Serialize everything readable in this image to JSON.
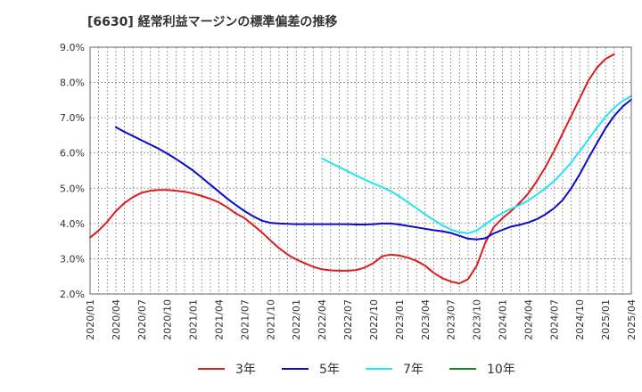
{
  "title": "[6630]  経常利益マージンの標準偏差の推移",
  "colors": {
    "s3": "#dd1c1c",
    "s5": "#0a0ac8",
    "s7": "#1fe6f0",
    "s10": "#118a11",
    "grid": "#888888"
  },
  "chart_data": {
    "type": "line",
    "title": "[6630]  経常利益マージンの標準偏差の推移",
    "xlabel": "",
    "ylabel": "",
    "ylim": [
      2.0,
      9.0
    ],
    "y_ticks": [
      "2.0%",
      "3.0%",
      "4.0%",
      "5.0%",
      "6.0%",
      "7.0%",
      "8.0%",
      "9.0%"
    ],
    "x_ticks": [
      "2020/01",
      "2020/04",
      "2020/07",
      "2020/10",
      "2021/01",
      "2021/04",
      "2021/07",
      "2021/10",
      "2022/01",
      "2022/04",
      "2022/07",
      "2022/10",
      "2023/01",
      "2023/04",
      "2023/07",
      "2023/10",
      "2024/01",
      "2024/04",
      "2024/07",
      "2024/10",
      "2025/01",
      "2025/04"
    ],
    "grid": true,
    "legend_position": "bottom",
    "series": [
      {
        "name": "3年",
        "color": "#dd1c1c",
        "start": "2020/01",
        "values": [
          3.6,
          3.8,
          4.05,
          4.35,
          4.58,
          4.75,
          4.87,
          4.93,
          4.95,
          4.95,
          4.93,
          4.9,
          4.85,
          4.78,
          4.7,
          4.6,
          4.45,
          4.28,
          4.15,
          3.95,
          3.75,
          3.52,
          3.3,
          3.12,
          2.98,
          2.87,
          2.77,
          2.7,
          2.67,
          2.66,
          2.66,
          2.68,
          2.75,
          2.88,
          3.07,
          3.12,
          3.09,
          3.03,
          2.94,
          2.8,
          2.6,
          2.45,
          2.35,
          2.3,
          2.42,
          2.8,
          3.45,
          3.9,
          4.15,
          4.35,
          4.58,
          4.85,
          5.2,
          5.6,
          6.05,
          6.55,
          7.05,
          7.55,
          8.05,
          8.42,
          8.67,
          8.8
        ]
      },
      {
        "name": "5年",
        "color": "#0a0ac8",
        "start": "2020/04",
        "values": [
          6.73,
          6.6,
          6.48,
          6.36,
          6.24,
          6.12,
          5.98,
          5.83,
          5.67,
          5.5,
          5.3,
          5.1,
          4.9,
          4.7,
          4.52,
          4.35,
          4.2,
          4.08,
          4.02,
          4.0,
          3.99,
          3.98,
          3.98,
          3.98,
          3.98,
          3.98,
          3.98,
          3.98,
          3.97,
          3.97,
          3.98,
          4.0,
          4.0,
          3.97,
          3.93,
          3.89,
          3.85,
          3.81,
          3.78,
          3.73,
          3.65,
          3.57,
          3.55,
          3.58,
          3.72,
          3.82,
          3.91,
          3.96,
          4.03,
          4.12,
          4.26,
          4.43,
          4.66,
          5.0,
          5.4,
          5.85,
          6.28,
          6.7,
          7.05,
          7.32,
          7.52
        ]
      },
      {
        "name": "7年",
        "color": "#1fe6f0",
        "start": "2022/04",
        "values": [
          5.85,
          5.72,
          5.6,
          5.48,
          5.36,
          5.24,
          5.13,
          5.03,
          4.92,
          4.77,
          4.6,
          4.43,
          4.26,
          4.1,
          3.95,
          3.83,
          3.75,
          3.72,
          3.8,
          3.97,
          4.15,
          4.3,
          4.42,
          4.52,
          4.65,
          4.82,
          5.0,
          5.2,
          5.45,
          5.73,
          6.05,
          6.38,
          6.72,
          7.03,
          7.28,
          7.48,
          7.62
        ]
      },
      {
        "name": "10年",
        "color": "#118a11",
        "start": "2025/01",
        "values": []
      }
    ]
  }
}
